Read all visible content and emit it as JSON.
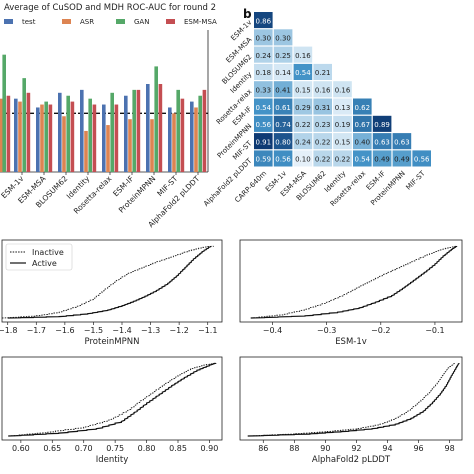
{
  "panel_label": "b",
  "chart_data": [
    {
      "id": "bar",
      "type": "bar",
      "title": "Average of CuSOD and MDH ROC-AUC for round 2",
      "legend": [
        "test",
        "ASR",
        "GAN",
        "ESM-MSA"
      ],
      "legend_placement": "top",
      "colors": [
        "#4c72b0",
        "#dd8452",
        "#55a868",
        "#c44e52"
      ],
      "categories": [
        "ESM-1v",
        "ESM-MSA",
        "BLOSUM62",
        "Identity",
        "Rosetta-relax",
        "ESM-IF",
        "ProteinMPNN",
        "MIF-ST",
        "AlphaFold2 pLDDT"
      ],
      "series": [
        {
          "name": "test",
          "values": [
            0.55,
            0.52,
            0.57,
            0.58,
            0.53,
            0.56,
            0.6,
            0.52,
            0.54
          ]
        },
        {
          "name": "ASR",
          "values": [
            0.54,
            0.53,
            0.49,
            0.44,
            0.46,
            0.48,
            0.48,
            0.5,
            0.52
          ]
        },
        {
          "name": "GAN",
          "values": [
            0.62,
            0.54,
            0.56,
            0.55,
            0.57,
            0.58,
            0.66,
            0.58,
            0.56
          ]
        },
        {
          "name": "ESM-MSA",
          "values": [
            0.57,
            0.53,
            0.54,
            0.53,
            0.53,
            0.58,
            0.6,
            0.55,
            0.58
          ]
        }
      ],
      "hidden_first_category_values": [
        0.58,
        0.55,
        0.7,
        0.56
      ],
      "reference_line": 0.5,
      "ylim": [
        0.3,
        0.75
      ]
    },
    {
      "id": "heatmap",
      "type": "heatmap",
      "labels": [
        "ESM-1v",
        "ESM-MSA",
        "BLOSUM62",
        "Identity",
        "Rosetta-relax",
        "ESM-IF",
        "ProteinMPNN",
        "MIF-ST",
        "AlphaFold2 pLDDT",
        "CARP-640m"
      ],
      "rows": [
        [
          0.86
        ],
        [
          0.3,
          0.3
        ],
        [
          0.24,
          0.25,
          0.16
        ],
        [
          0.18,
          0.14,
          0.54,
          0.21
        ],
        [
          0.33,
          0.41,
          0.15,
          0.16,
          0.16
        ],
        [
          0.54,
          0.61,
          0.29,
          0.31,
          0.13,
          0.62
        ],
        [
          0.56,
          0.74,
          0.22,
          0.23,
          0.19,
          0.67,
          0.89
        ],
        [
          0.91,
          0.8,
          0.24,
          0.22,
          0.15,
          0.4,
          0.63,
          0.63
        ],
        [
          0.59,
          0.56,
          0.1,
          0.22,
          0.22,
          0.54,
          0.49,
          0.49,
          0.56
        ]
      ],
      "row_labels": [
        "ESM-1v",
        "ESM-MSA",
        "BLOSUM62",
        "Identity",
        "Rosetta-relax",
        "ESM-IF",
        "ProteinMPNN",
        "MIF-ST",
        "AlphaFold2 pLDDT"
      ],
      "col_labels": [
        "CARP-640m",
        "ESM-1v",
        "ESM-MSA",
        "BLOSUM62",
        "Identity",
        "Rosetta-relax",
        "ESM-IF",
        "ProteinMPNN",
        "MIF-ST"
      ]
    },
    {
      "id": "ecdf1",
      "type": "line",
      "xlabel": "ProteinMPNN",
      "xticks": [
        -1.8,
        -1.7,
        -1.6,
        -1.5,
        -1.4,
        -1.3,
        -1.2,
        -1.1
      ],
      "xlim": [
        -1.82,
        -1.05
      ],
      "legend": [
        "Inactive",
        "Active"
      ],
      "legend_placement": "top-left",
      "series": [
        {
          "name": "Inactive",
          "x": [
            -1.82,
            -1.7,
            -1.62,
            -1.56,
            -1.5,
            -1.46,
            -1.42,
            -1.38,
            -1.33,
            -1.28,
            -1.22,
            -1.17,
            -1.12,
            -1.08
          ],
          "y": [
            0,
            0.03,
            0.08,
            0.16,
            0.27,
            0.4,
            0.52,
            0.62,
            0.7,
            0.78,
            0.86,
            0.93,
            0.98,
            1.0
          ]
        },
        {
          "name": "Active",
          "x": [
            -1.8,
            -1.62,
            -1.52,
            -1.45,
            -1.4,
            -1.36,
            -1.32,
            -1.28,
            -1.24,
            -1.21,
            -1.18,
            -1.15,
            -1.12,
            -1.09
          ],
          "y": [
            0,
            0.02,
            0.06,
            0.11,
            0.17,
            0.23,
            0.3,
            0.38,
            0.48,
            0.58,
            0.7,
            0.82,
            0.92,
            1.0
          ]
        }
      ]
    },
    {
      "id": "ecdf2",
      "type": "line",
      "xlabel": "ESM-1v",
      "xticks": [
        -0.4,
        -0.3,
        -0.2,
        -0.1
      ],
      "xtick_labels": [
        "−0.4",
        "−0.3",
        "−0.2",
        "−0.1"
      ],
      "xlim": [
        -0.46,
        -0.05
      ],
      "series": [
        {
          "name": "Inactive",
          "x": [
            -0.44,
            -0.38,
            -0.34,
            -0.3,
            -0.27,
            -0.24,
            -0.21,
            -0.18,
            -0.15,
            -0.12,
            -0.1,
            -0.08,
            -0.06
          ],
          "y": [
            0,
            0.05,
            0.12,
            0.22,
            0.32,
            0.44,
            0.55,
            0.66,
            0.76,
            0.86,
            0.92,
            0.97,
            1.0
          ]
        },
        {
          "name": "Active",
          "x": [
            -0.44,
            -0.34,
            -0.28,
            -0.24,
            -0.21,
            -0.18,
            -0.16,
            -0.14,
            -0.12,
            -0.1,
            -0.085,
            -0.07,
            -0.06
          ],
          "y": [
            0,
            0.03,
            0.08,
            0.14,
            0.22,
            0.31,
            0.41,
            0.52,
            0.63,
            0.75,
            0.86,
            0.95,
            1.0
          ]
        }
      ]
    },
    {
      "id": "ecdf3",
      "type": "line",
      "xlabel": "Identity",
      "xticks": [
        0.6,
        0.65,
        0.7,
        0.75,
        0.8,
        0.85,
        0.9
      ],
      "xtick_labels": [
        "0.60",
        "0.65",
        "0.70",
        "0.75",
        "0.80",
        "0.85",
        "0.90"
      ],
      "xlim": [
        0.57,
        0.92
      ],
      "series": [
        {
          "name": "Inactive",
          "x": [
            0.58,
            0.64,
            0.7,
            0.74,
            0.77,
            0.79,
            0.81,
            0.83,
            0.85,
            0.87,
            0.89,
            0.91
          ],
          "y": [
            0,
            0.05,
            0.12,
            0.22,
            0.35,
            0.48,
            0.6,
            0.72,
            0.83,
            0.92,
            0.97,
            1.0
          ]
        },
        {
          "name": "Active",
          "x": [
            0.58,
            0.66,
            0.72,
            0.76,
            0.78,
            0.8,
            0.82,
            0.84,
            0.86,
            0.88,
            0.9,
            0.91
          ],
          "y": [
            0,
            0.04,
            0.1,
            0.2,
            0.32,
            0.45,
            0.57,
            0.69,
            0.8,
            0.9,
            0.97,
            1.0
          ]
        }
      ]
    },
    {
      "id": "ecdf4",
      "type": "line",
      "xlabel": "AlphaFold2 pLDDT",
      "xticks": [
        86,
        88,
        90,
        92,
        94,
        96,
        98
      ],
      "xlim": [
        84.5,
        98.8
      ],
      "series": [
        {
          "name": "Inactive",
          "x": [
            85,
            88,
            90,
            92,
            93.5,
            94.5,
            95.3,
            96.0,
            96.6,
            97.1,
            97.5,
            97.9,
            98.3
          ],
          "y": [
            0,
            0.03,
            0.06,
            0.1,
            0.16,
            0.24,
            0.34,
            0.46,
            0.58,
            0.7,
            0.82,
            0.93,
            1.0
          ]
        },
        {
          "name": "Active",
          "x": [
            85,
            89,
            91,
            93,
            94.5,
            95.5,
            96.3,
            96.9,
            97.4,
            97.8,
            98.1,
            98.4,
            98.6
          ],
          "y": [
            0,
            0.03,
            0.06,
            0.1,
            0.16,
            0.24,
            0.34,
            0.46,
            0.58,
            0.7,
            0.82,
            0.93,
            1.0
          ]
        }
      ]
    }
  ]
}
